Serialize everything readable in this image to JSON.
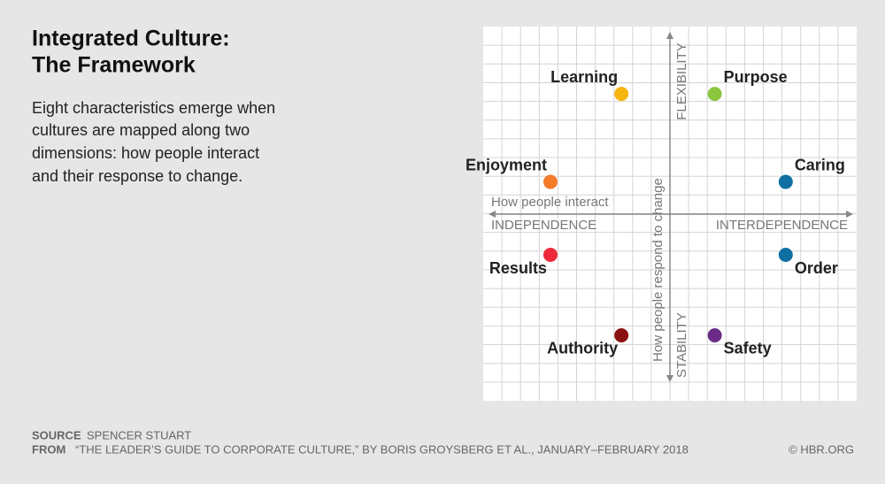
{
  "chart_data": {
    "type": "scatter",
    "title": [
      "Integrated Culture:",
      "The Framework"
    ],
    "subtitle": [
      "Eight characteristics emerge when",
      "cultures are mapped along two",
      "dimensions: how people interact",
      "and their response to change."
    ],
    "x_axis_label": "How people interact",
    "y_axis_label": "How people respond to change",
    "x_left_label": "INDEPENDENCE",
    "x_right_label": "INTERDEPENDENCE",
    "y_top_label": "FLEXIBILITY",
    "y_bottom_label": "STABILITY",
    "xlim": [
      -10,
      10
    ],
    "ylim": [
      -10,
      10
    ],
    "grid": true,
    "points": [
      {
        "name": "Learning",
        "color": "#f6b50f",
        "x": -2.6,
        "y": 6.4
      },
      {
        "name": "Purpose",
        "color": "#8cc63f",
        "x": 2.4,
        "y": 6.4
      },
      {
        "name": "Enjoyment",
        "color": "#f47b2a",
        "x": -6.4,
        "y": 1.7
      },
      {
        "name": "Caring",
        "color": "#0f6fa3",
        "x": 6.2,
        "y": 1.7
      },
      {
        "name": "Results",
        "color": "#ed2939",
        "x": -6.4,
        "y": -2.2
      },
      {
        "name": "Order",
        "color": "#0f6fa3",
        "x": 6.2,
        "y": -2.2
      },
      {
        "name": "Authority",
        "color": "#8b1010",
        "x": -2.6,
        "y": -6.5
      },
      {
        "name": "Safety",
        "color": "#6a2c88",
        "x": 2.4,
        "y": -6.5
      }
    ],
    "source_label": "SOURCE",
    "source": "SPENCER STUART",
    "from_label": "FROM",
    "from": "“THE LEADER’S GUIDE TO CORPORATE CULTURE,” BY BORIS GROYSBERG ET AL., JANUARY–FEBRUARY 2018",
    "credit": "© HBR.ORG"
  }
}
